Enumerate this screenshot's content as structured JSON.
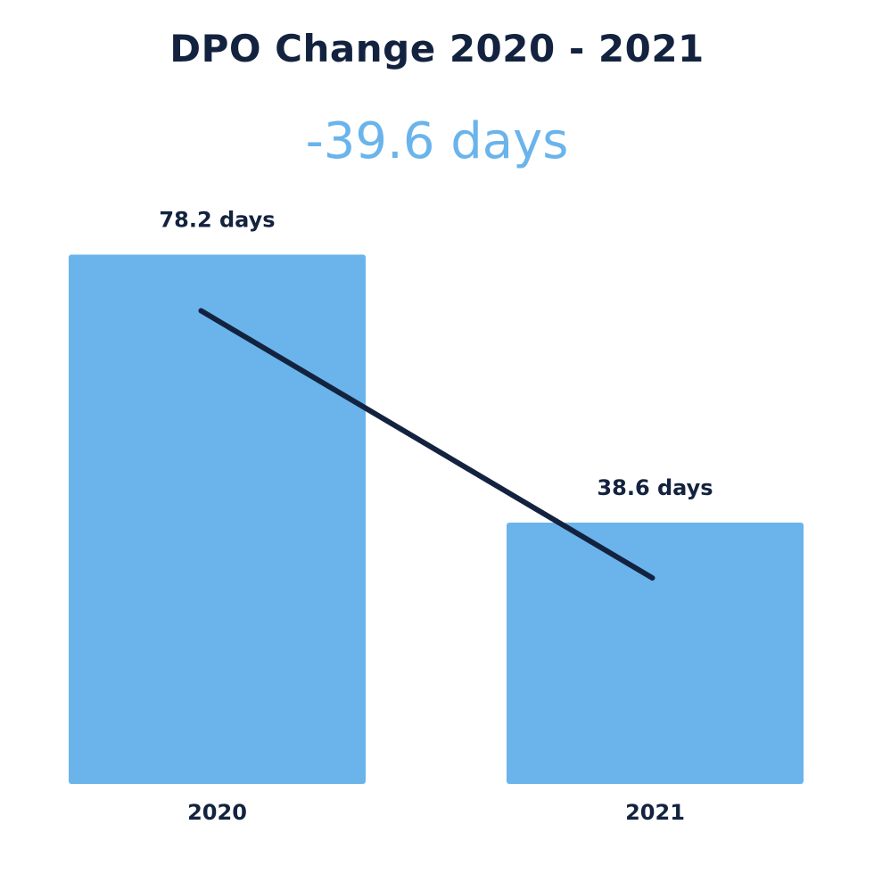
{
  "chart_data": {
    "type": "bar",
    "title": "DPO Change 2020 - 2021",
    "subtitle": "-39.6 days",
    "categories": [
      "2020",
      "2021"
    ],
    "values": [
      78.2,
      38.6
    ],
    "value_labels": [
      "78.2 days",
      "38.6 days"
    ],
    "trend_line": true,
    "grid": false,
    "xlabel": "",
    "ylabel": ""
  },
  "colors": {
    "bar": "#6ab4eb",
    "dark_text": "#13233f",
    "accent_text": "#6ab4eb",
    "trend_line": "#13233f"
  }
}
